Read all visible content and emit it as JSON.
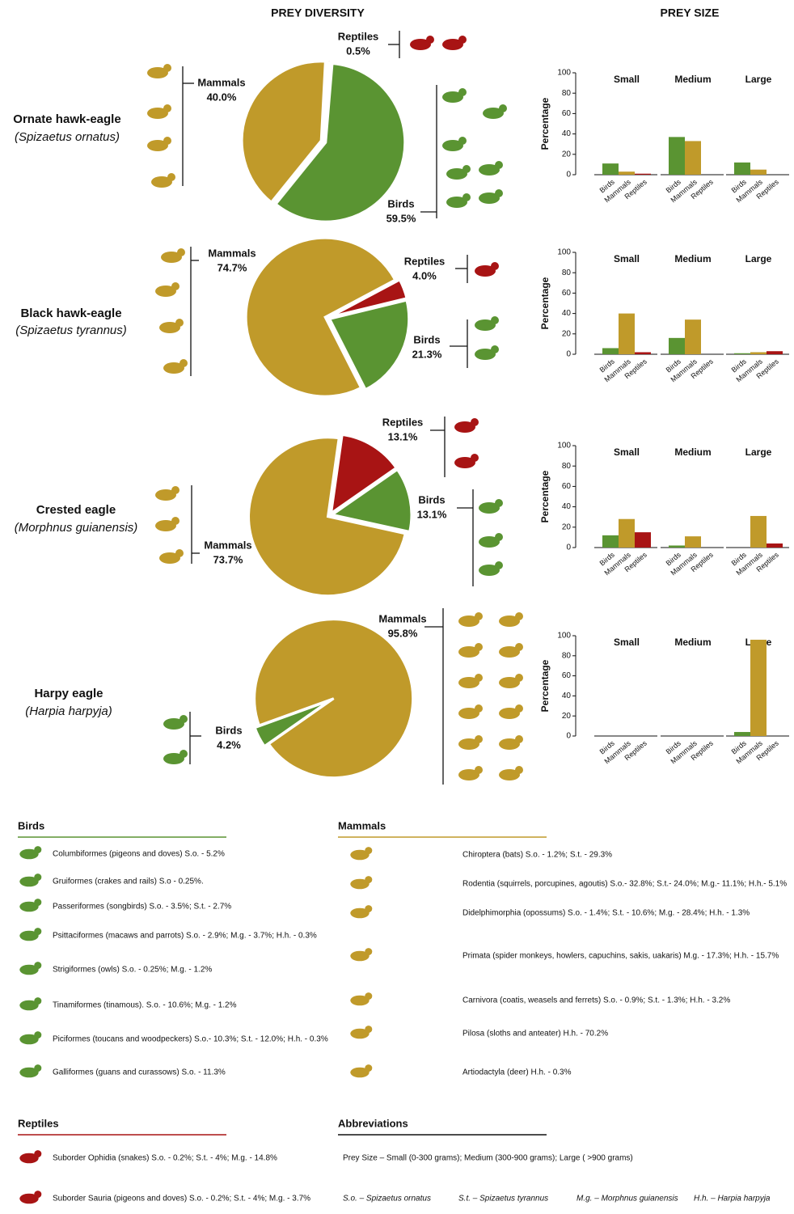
{
  "headers": [
    "PREY DIVERSITY",
    "PREY SIZE"
  ],
  "species": [
    {
      "name": "Ornate hawk-eagle",
      "scientific": "(Spizaetus ornatus)"
    },
    {
      "name": "Black hawk-eagle",
      "scientific": "(Spizaetus tyrannus)"
    },
    {
      "name": "Crested eagle",
      "scientific": "(Morphnus guianensis)"
    },
    {
      "name": "Harpy eagle",
      "scientific": "(Harpia harpyja)"
    }
  ],
  "chart_data": [
    {
      "type": "pie",
      "categories": [
        "Reptiles",
        "Birds",
        "Mammals"
      ],
      "values": [
        0.5,
        59.5,
        40.0
      ],
      "value_labels": [
        "0.5%",
        "59.5%",
        "40.0%"
      ],
      "colors": [
        "#a81414",
        "#5a9432",
        "#c09a2a"
      ]
    },
    {
      "type": "bar",
      "ylabel": "Percentage",
      "categories": [
        "Birds",
        "Mammals",
        "Reptiles"
      ],
      "colors": [
        "#5a9432",
        "#c09a2a",
        "#a81414"
      ],
      "ylim": [
        0,
        100
      ],
      "yticks": [
        0,
        20,
        40,
        60,
        80,
        100
      ],
      "series": [
        {
          "name": "Small",
          "values": [
            11,
            3,
            1
          ]
        },
        {
          "name": "Medium",
          "values": [
            37,
            33,
            0
          ]
        },
        {
          "name": "Large",
          "values": [
            12,
            5,
            0
          ]
        }
      ]
    },
    {
      "type": "pie",
      "categories": [
        "Reptiles",
        "Birds",
        "Mammals"
      ],
      "values": [
        4.0,
        21.3,
        74.7
      ],
      "value_labels": [
        "4.0%",
        "21.3%",
        "74.7%"
      ],
      "colors": [
        "#a81414",
        "#5a9432",
        "#c09a2a"
      ]
    },
    {
      "type": "bar",
      "ylabel": "Percentage",
      "categories": [
        "Birds",
        "Mammals",
        "Reptiles"
      ],
      "colors": [
        "#5a9432",
        "#c09a2a",
        "#a81414"
      ],
      "ylim": [
        0,
        100
      ],
      "yticks": [
        0,
        20,
        40,
        60,
        80,
        100
      ],
      "series": [
        {
          "name": "Small",
          "values": [
            6,
            40,
            2
          ]
        },
        {
          "name": "Medium",
          "values": [
            16,
            34,
            0
          ]
        },
        {
          "name": "Large",
          "values": [
            1,
            2,
            3
          ]
        }
      ]
    },
    {
      "type": "pie",
      "categories": [
        "Reptiles",
        "Birds",
        "Mammals"
      ],
      "values": [
        13.1,
        13.1,
        73.7
      ],
      "value_labels": [
        "13.1%",
        "13.1%",
        "73.7%"
      ],
      "colors": [
        "#a81414",
        "#5a9432",
        "#c09a2a"
      ]
    },
    {
      "type": "bar",
      "ylabel": "Percentage",
      "categories": [
        "Birds",
        "Mammals",
        "Reptiles"
      ],
      "colors": [
        "#5a9432",
        "#c09a2a",
        "#a81414"
      ],
      "ylim": [
        0,
        100
      ],
      "yticks": [
        0,
        20,
        40,
        60,
        80,
        100
      ],
      "series": [
        {
          "name": "Small",
          "values": [
            12,
            28,
            15
          ]
        },
        {
          "name": "Medium",
          "values": [
            2,
            11,
            0
          ]
        },
        {
          "name": "Large",
          "values": [
            0,
            31,
            4
          ]
        }
      ]
    },
    {
      "type": "pie",
      "categories": [
        "Birds",
        "Mammals"
      ],
      "values": [
        4.2,
        95.8
      ],
      "value_labels": [
        "4.2%",
        "95.8%"
      ],
      "colors": [
        "#5a9432",
        "#c09a2a"
      ]
    },
    {
      "type": "bar",
      "ylabel": "Percentage",
      "categories": [
        "Birds",
        "Mammals",
        "Reptiles"
      ],
      "colors": [
        "#5a9432",
        "#c09a2a",
        "#a81414"
      ],
      "ylim": [
        0,
        100
      ],
      "yticks": [
        0,
        20,
        40,
        60,
        80,
        100
      ],
      "series": [
        {
          "name": "Small",
          "values": [
            0,
            0,
            0
          ]
        },
        {
          "name": "Medium",
          "values": [
            0,
            0,
            0
          ]
        },
        {
          "name": "Large",
          "values": [
            4,
            96,
            0
          ]
        }
      ]
    }
  ],
  "legend": {
    "birds": {
      "title": "Birds",
      "items": [
        "Columbiformes (pigeons and doves) S.o. - 5.2%",
        "Gruiformes (crakes and rails) S.o - 0.25%.",
        "Passeriformes (songbirds) S.o. - 3.5%; S.t. - 2.7%",
        "Psittaciformes (macaws and parrots) S.o. - 2.9%; M.g. - 3.7%; H.h. - 0.3%",
        "Strigiformes (owls) S.o. - 0.25%; M.g. - 1.2%",
        "Tinamiformes (tinamous). S.o. - 10.6%; M.g. - 1.2%",
        "Piciformes (toucans and woodpeckers) S.o.- 10.3%; S.t. - 12.0%; H.h. - 0.3%",
        "Galliformes (guans and curassows) S.o. - 11.3%"
      ]
    },
    "mammals": {
      "title": "Mammals",
      "items": [
        "Chiroptera (bats) S.o. - 1.2%; S.t. - 29.3%",
        "Rodentia (squirrels, porcupines, agoutis) S.o.- 32.8%; S.t.- 24.0%; M.g.- 11.1%; H.h.- 5.1%",
        "Didelphimorphia (opossums) S.o. - 1.4%; S.t. - 10.6%; M.g. - 28.4%; H.h. - 1.3%",
        "Primata (spider monkeys, howlers, capuchins, sakis, uakaris) M.g. - 17.3%; H.h. - 15.7%",
        "Carnivora (coatis, weasels and ferrets) S.o. - 0.9%; S.t. - 1.3%; H.h. - 3.2%",
        "Pilosa (sloths and anteater) H.h. - 70.2%",
        "Artiodactyla (deer) H.h. - 0.3%"
      ]
    },
    "reptiles": {
      "title": "Reptiles",
      "items": [
        "Suborder Ophidia (snakes) S.o. - 0.2%; S.t. - 4%; M.g. - 14.8%",
        "Suborder Sauria (pigeons and doves) S.o. - 0.2%; S.t. - 4%; M.g. - 3.7%"
      ]
    },
    "abbreviations": {
      "title": "Abbreviations",
      "prey_size": "Prey Size – Small (0-300 grams); Medium (300-900 grams); Large ( >900 grams)",
      "items": [
        "S.o. – Spizaetus ornatus",
        "S.t. – Spizaetus tyrannus",
        "M.g. – Morphnus guianensis",
        "H.h. – Harpia harpyja"
      ]
    }
  }
}
